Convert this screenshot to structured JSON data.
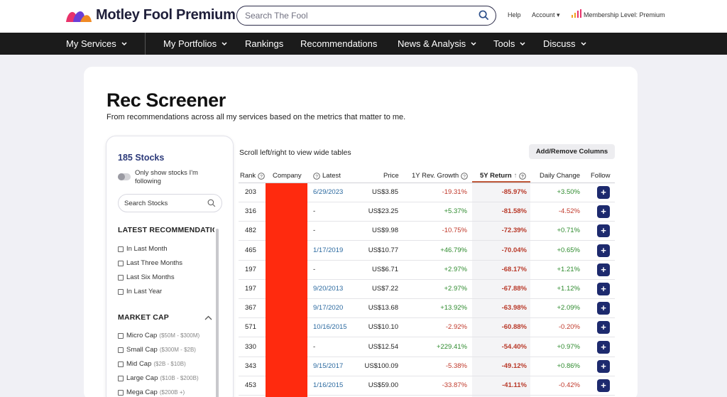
{
  "header": {
    "brand": "Motley Fool Premium",
    "search_placeholder": "Search The Fool",
    "help": "Help",
    "account": "Account",
    "membership": "Membership Level: Premium"
  },
  "nav": [
    "My Services",
    "My Portfolios",
    "Rankings",
    "Recommendations",
    "News & Analysis",
    "Tools",
    "Discuss"
  ],
  "page": {
    "title": "Rec Screener",
    "subtitle": "From recommendations across all my services based on the metrics that matter to me."
  },
  "filters": {
    "count": "185 Stocks",
    "toggle_label": "Only show stocks I'm following",
    "search_placeholder": "Search Stocks",
    "latest_title": "LATEST RECOMMENDATIONS",
    "latest_options": [
      "In Last Month",
      "Last Three Months",
      "Last Six Months",
      "In Last Year"
    ],
    "marketcap_title": "MARKET CAP",
    "marketcap_options": [
      {
        "label": "Micro Cap",
        "range": "($50M - $300M)"
      },
      {
        "label": "Small Cap",
        "range": "($300M - $2B)"
      },
      {
        "label": "Mid Cap",
        "range": "($2B - $10B)"
      },
      {
        "label": "Large Cap",
        "range": "($10B - $200B)"
      },
      {
        "label": "Mega Cap",
        "range": "($200B +)"
      }
    ]
  },
  "table": {
    "hint": "Scroll left/right to view wide tables",
    "add_remove": "Add/Remove Columns",
    "headers": {
      "rank": "Rank",
      "company": "Company",
      "latest": "Latest",
      "price": "Price",
      "growth": "1Y Rev. Growth",
      "return": "5Y Return",
      "daily": "Daily Change",
      "follow": "Follow"
    },
    "follow_symbol": "+",
    "rows": [
      {
        "rank": "203",
        "latest": "6/29/2023",
        "price": "US$3.85",
        "growth": "-19.31%",
        "ret": "-85.97%",
        "daily": "+3.50%"
      },
      {
        "rank": "316",
        "latest": "-",
        "price": "US$23.25",
        "growth": "+5.37%",
        "ret": "-81.58%",
        "daily": "-4.52%"
      },
      {
        "rank": "482",
        "latest": "-",
        "price": "US$9.98",
        "growth": "-10.75%",
        "ret": "-72.39%",
        "daily": "+0.71%"
      },
      {
        "rank": "465",
        "latest": "1/17/2019",
        "price": "US$10.77",
        "growth": "+46.79%",
        "ret": "-70.04%",
        "daily": "+0.65%"
      },
      {
        "rank": "197",
        "latest": "-",
        "price": "US$6.71",
        "growth": "+2.97%",
        "ret": "-68.17%",
        "daily": "+1.21%"
      },
      {
        "rank": "197",
        "latest": "9/20/2013",
        "price": "US$7.22",
        "growth": "+2.97%",
        "ret": "-67.88%",
        "daily": "+1.12%"
      },
      {
        "rank": "367",
        "latest": "9/17/2020",
        "price": "US$13.68",
        "growth": "+13.92%",
        "ret": "-63.98%",
        "daily": "+2.09%"
      },
      {
        "rank": "571",
        "latest": "10/16/2015",
        "price": "US$10.10",
        "growth": "-2.92%",
        "ret": "-60.88%",
        "daily": "-0.20%"
      },
      {
        "rank": "330",
        "latest": "-",
        "price": "US$12.54",
        "growth": "+229.41%",
        "ret": "-54.40%",
        "daily": "+0.97%"
      },
      {
        "rank": "343",
        "latest": "9/15/2017",
        "price": "US$100.09",
        "growth": "-5.38%",
        "ret": "-49.12%",
        "daily": "+0.86%"
      },
      {
        "rank": "453",
        "latest": "1/16/2015",
        "price": "US$59.00",
        "growth": "-33.87%",
        "ret": "-41.11%",
        "daily": "-0.42%"
      }
    ]
  }
}
